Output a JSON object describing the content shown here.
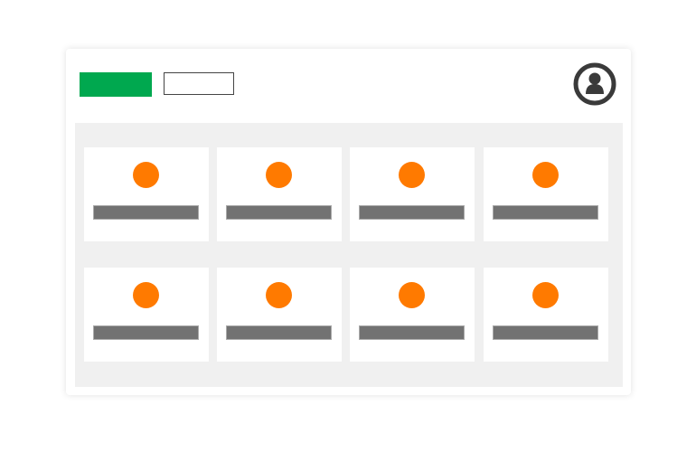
{
  "colors": {
    "primary_button": "#00a84f",
    "card_icon": "#ff7a00",
    "card_bar": "#727272",
    "avatar": "#3a3a3a",
    "panel_background": "#f0f0f0"
  },
  "header": {
    "primary_button": "",
    "secondary_button": "",
    "avatar_icon": "user-circle-icon"
  },
  "grid": {
    "rows": 2,
    "columns": 4,
    "cards": [
      {
        "icon": "circle-icon",
        "label": ""
      },
      {
        "icon": "circle-icon",
        "label": ""
      },
      {
        "icon": "circle-icon",
        "label": ""
      },
      {
        "icon": "circle-icon",
        "label": ""
      },
      {
        "icon": "circle-icon",
        "label": ""
      },
      {
        "icon": "circle-icon",
        "label": ""
      },
      {
        "icon": "circle-icon",
        "label": ""
      },
      {
        "icon": "circle-icon",
        "label": ""
      }
    ]
  }
}
